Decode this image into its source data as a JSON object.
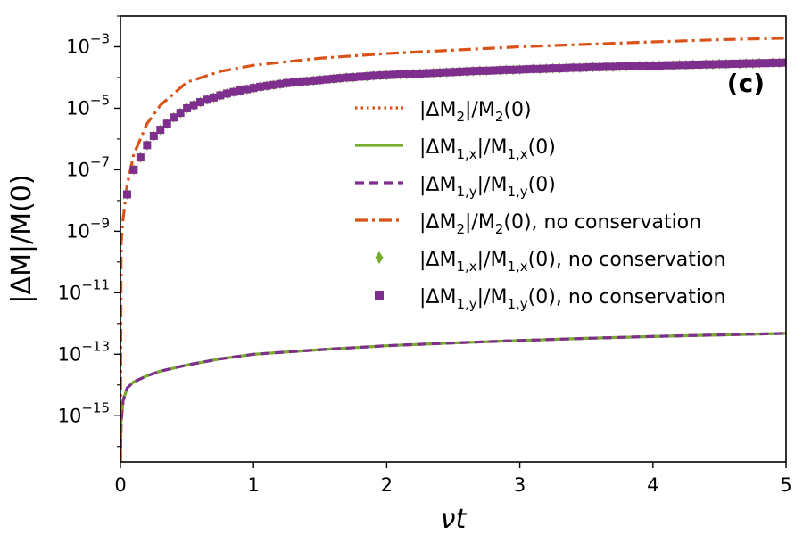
{
  "chart_data": {
    "type": "line",
    "title": "",
    "panel_label": "(c)",
    "xlabel": "νt",
    "ylabel": "|ΔM|/M(0)",
    "xlim": [
      0,
      5
    ],
    "ylim_log10": [
      -16.5,
      -2.0
    ],
    "y_scale": "log",
    "grid": false,
    "legend_position": "center-right",
    "x_ticks": [
      0,
      1,
      2,
      3,
      4,
      5
    ],
    "x_tick_labels": [
      "0",
      "1",
      "2",
      "3",
      "4",
      "5"
    ],
    "y_ticks_log10": [
      -15,
      -13,
      -11,
      -9,
      -7,
      -5,
      -3
    ],
    "y_tick_labels": [
      {
        "base": "10",
        "exp": "−15"
      },
      {
        "base": "10",
        "exp": "−13"
      },
      {
        "base": "10",
        "exp": "−11"
      },
      {
        "base": "10",
        "exp": "−9"
      },
      {
        "base": "10",
        "exp": "−7"
      },
      {
        "base": "10",
        "exp": "−5"
      },
      {
        "base": "10",
        "exp": "−3"
      }
    ],
    "colors": {
      "orange": "#d95319",
      "green": "#77ac30",
      "purple": "#7e2f8e",
      "axis": "#000000"
    },
    "series": [
      {
        "name": "|ΔM2|/M2(0)",
        "legend": {
          "pre": "|ΔM",
          "sub1": "2",
          "mid": "|/M",
          "sub2": "2",
          "post": "(0)"
        },
        "style": "dotted",
        "color": "#d95319",
        "x": [
          0.005,
          0.02,
          0.05,
          0.1,
          0.2,
          0.3,
          0.5,
          0.75,
          1.0,
          1.5,
          2.0,
          2.5,
          3.0,
          3.5,
          4.0,
          4.5,
          5.0
        ],
        "log10_y": [
          -15.2,
          -14.5,
          -14.1,
          -13.9,
          -13.7,
          -13.55,
          -13.35,
          -13.15,
          -13.0,
          -12.85,
          -12.72,
          -12.63,
          -12.55,
          -12.48,
          -12.42,
          -12.37,
          -12.32
        ]
      },
      {
        "name": "|ΔM1,x|/M1,x(0)",
        "legend": {
          "pre": "|ΔM",
          "sub1": "1,x",
          "mid": "|/M",
          "sub2": "1,x",
          "post": "(0)"
        },
        "style": "solid",
        "color": "#77ac30",
        "x": [
          0.0,
          0.005,
          0.02,
          0.05,
          0.1,
          0.2,
          0.3,
          0.5,
          0.75,
          1.0,
          1.5,
          2.0,
          2.5,
          3.0,
          3.5,
          4.0,
          4.5,
          5.0
        ],
        "log10_y": [
          -16.5,
          -15.2,
          -14.5,
          -14.1,
          -13.9,
          -13.7,
          -13.55,
          -13.35,
          -13.15,
          -13.0,
          -12.85,
          -12.72,
          -12.63,
          -12.55,
          -12.48,
          -12.42,
          -12.37,
          -12.32
        ]
      },
      {
        "name": "|ΔM1,y|/M1,y(0)",
        "legend": {
          "pre": "|ΔM",
          "sub1": "1,y",
          "mid": "|/M",
          "sub2": "1,y",
          "post": "(0)"
        },
        "style": "dashed",
        "color": "#7e2f8e",
        "x": [
          0.0,
          0.005,
          0.02,
          0.05,
          0.1,
          0.2,
          0.3,
          0.5,
          0.75,
          1.0,
          1.5,
          2.0,
          2.5,
          3.0,
          3.5,
          4.0,
          4.5,
          5.0
        ],
        "log10_y": [
          -16.5,
          -15.2,
          -14.5,
          -14.1,
          -13.9,
          -13.7,
          -13.55,
          -13.35,
          -13.15,
          -13.0,
          -12.85,
          -12.72,
          -12.63,
          -12.55,
          -12.48,
          -12.42,
          -12.37,
          -12.32
        ]
      },
      {
        "name": "|ΔM2|/M2(0), no conservation",
        "legend": {
          "pre": "|ΔM",
          "sub1": "2",
          "mid": "|/M",
          "sub2": "2",
          "post": "(0), no conservation"
        },
        "style": "dashdot",
        "color": "#d95319",
        "x": [
          0.0,
          0.005,
          0.02,
          0.05,
          0.1,
          0.2,
          0.3,
          0.5,
          0.75,
          1.0,
          1.5,
          2.0,
          2.5,
          3.0,
          3.5,
          4.0,
          4.5,
          5.0
        ],
        "log10_y": [
          -16.5,
          -9.4,
          -8.6,
          -7.5,
          -6.5,
          -5.5,
          -4.9,
          -4.15,
          -3.8,
          -3.6,
          -3.37,
          -3.22,
          -3.11,
          -3.0,
          -2.92,
          -2.84,
          -2.77,
          -2.72
        ]
      },
      {
        "name": "|ΔM1,x|/M1,x(0), no conservation",
        "legend": {
          "pre": "|ΔM",
          "sub1": "1,x",
          "mid": "|/M",
          "sub2": "1,x",
          "post": "(0), no conservation"
        },
        "style": "markers-diamond",
        "color": "#77ac30",
        "x": [
          0.05,
          0.1,
          0.15,
          0.2,
          0.25,
          0.3,
          0.35,
          0.4,
          0.45,
          0.5,
          0.55,
          0.6,
          0.65,
          0.7,
          0.75,
          0.8,
          0.85,
          0.9,
          0.95,
          1.0,
          1.05,
          1.1,
          1.15,
          1.2,
          1.25,
          1.3,
          1.35,
          1.4,
          1.45,
          1.5,
          1.55,
          1.6,
          1.65,
          1.7,
          1.75,
          1.8,
          1.85,
          1.9,
          1.95,
          2.0,
          2.05,
          2.1,
          2.15,
          2.2,
          2.25,
          2.3,
          2.35,
          2.4,
          2.45,
          2.5,
          2.55,
          2.6,
          2.65,
          2.7,
          2.75,
          2.8,
          2.85,
          2.9,
          2.95,
          3.0,
          3.05,
          3.1,
          3.15,
          3.2,
          3.25,
          3.3,
          3.35,
          3.4,
          3.45,
          3.5,
          3.55,
          3.6,
          3.65,
          3.7,
          3.75,
          3.8,
          3.85,
          3.9,
          3.95,
          4.0,
          4.05,
          4.1,
          4.15,
          4.2,
          4.25,
          4.3,
          4.35,
          4.4,
          4.45,
          4.5,
          4.55,
          4.6,
          4.65,
          4.7,
          4.75,
          4.8,
          4.85,
          4.9,
          4.95,
          5.0
        ],
        "log10_y": [
          -7.8,
          -7.0,
          -6.6,
          -6.2,
          -5.9,
          -5.7,
          -5.5,
          -5.3,
          -5.15,
          -5.0,
          -4.9,
          -4.8,
          -4.72,
          -4.65,
          -4.58,
          -4.52,
          -4.47,
          -4.42,
          -4.38,
          -4.34,
          -4.3,
          -4.27,
          -4.24,
          -4.21,
          -4.18,
          -4.16,
          -4.14,
          -4.12,
          -4.1,
          -4.08,
          -4.06,
          -4.04,
          -4.02,
          -4.0,
          -3.99,
          -3.97,
          -3.96,
          -3.94,
          -3.93,
          -3.92,
          -3.91,
          -3.9,
          -3.89,
          -3.88,
          -3.87,
          -3.86,
          -3.85,
          -3.84,
          -3.83,
          -3.82,
          -3.81,
          -3.8,
          -3.79,
          -3.78,
          -3.78,
          -3.77,
          -3.76,
          -3.75,
          -3.75,
          -3.74,
          -3.73,
          -3.72,
          -3.72,
          -3.71,
          -3.7,
          -3.7,
          -3.69,
          -3.68,
          -3.68,
          -3.67,
          -3.66,
          -3.66,
          -3.65,
          -3.65,
          -3.64,
          -3.63,
          -3.63,
          -3.62,
          -3.62,
          -3.61,
          -3.61,
          -3.6,
          -3.6,
          -3.59,
          -3.59,
          -3.58,
          -3.58,
          -3.57,
          -3.57,
          -3.56,
          -3.56,
          -3.55,
          -3.55,
          -3.54,
          -3.54,
          -3.53,
          -3.53,
          -3.52,
          -3.52,
          -3.51
        ]
      },
      {
        "name": "|ΔM1,y|/M1,y(0), no conservation",
        "legend": {
          "pre": "|ΔM",
          "sub1": "1,y",
          "mid": "|/M",
          "sub2": "1,y",
          "post": "(0), no conservation"
        },
        "style": "markers-square",
        "color": "#7e2f8e",
        "x": [
          0.05,
          0.1,
          0.15,
          0.2,
          0.25,
          0.3,
          0.35,
          0.4,
          0.45,
          0.5,
          0.55,
          0.6,
          0.65,
          0.7,
          0.75,
          0.8,
          0.85,
          0.9,
          0.95,
          1.0,
          1.05,
          1.1,
          1.15,
          1.2,
          1.25,
          1.3,
          1.35,
          1.4,
          1.45,
          1.5,
          1.55,
          1.6,
          1.65,
          1.7,
          1.75,
          1.8,
          1.85,
          1.9,
          1.95,
          2.0,
          2.05,
          2.1,
          2.15,
          2.2,
          2.25,
          2.3,
          2.35,
          2.4,
          2.45,
          2.5,
          2.55,
          2.6,
          2.65,
          2.7,
          2.75,
          2.8,
          2.85,
          2.9,
          2.95,
          3.0,
          3.05,
          3.1,
          3.15,
          3.2,
          3.25,
          3.3,
          3.35,
          3.4,
          3.45,
          3.5,
          3.55,
          3.6,
          3.65,
          3.7,
          3.75,
          3.8,
          3.85,
          3.9,
          3.95,
          4.0,
          4.05,
          4.1,
          4.15,
          4.2,
          4.25,
          4.3,
          4.35,
          4.4,
          4.45,
          4.5,
          4.55,
          4.6,
          4.65,
          4.7,
          4.75,
          4.8,
          4.85,
          4.9,
          4.95,
          5.0
        ],
        "log10_y": [
          -7.8,
          -7.0,
          -6.6,
          -6.2,
          -5.9,
          -5.7,
          -5.5,
          -5.3,
          -5.15,
          -5.0,
          -4.9,
          -4.8,
          -4.72,
          -4.65,
          -4.58,
          -4.52,
          -4.47,
          -4.42,
          -4.38,
          -4.34,
          -4.3,
          -4.27,
          -4.24,
          -4.21,
          -4.18,
          -4.16,
          -4.14,
          -4.12,
          -4.1,
          -4.08,
          -4.06,
          -4.04,
          -4.02,
          -4.0,
          -3.99,
          -3.97,
          -3.96,
          -3.94,
          -3.93,
          -3.92,
          -3.91,
          -3.9,
          -3.89,
          -3.88,
          -3.87,
          -3.86,
          -3.85,
          -3.84,
          -3.83,
          -3.82,
          -3.81,
          -3.8,
          -3.79,
          -3.78,
          -3.78,
          -3.77,
          -3.76,
          -3.75,
          -3.75,
          -3.74,
          -3.73,
          -3.72,
          -3.72,
          -3.71,
          -3.7,
          -3.7,
          -3.69,
          -3.68,
          -3.68,
          -3.67,
          -3.66,
          -3.66,
          -3.65,
          -3.65,
          -3.64,
          -3.63,
          -3.63,
          -3.62,
          -3.62,
          -3.61,
          -3.61,
          -3.6,
          -3.6,
          -3.59,
          -3.59,
          -3.58,
          -3.58,
          -3.57,
          -3.57,
          -3.56,
          -3.56,
          -3.55,
          -3.55,
          -3.54,
          -3.54,
          -3.53,
          -3.53,
          -3.52,
          -3.52,
          -3.51
        ]
      }
    ]
  }
}
